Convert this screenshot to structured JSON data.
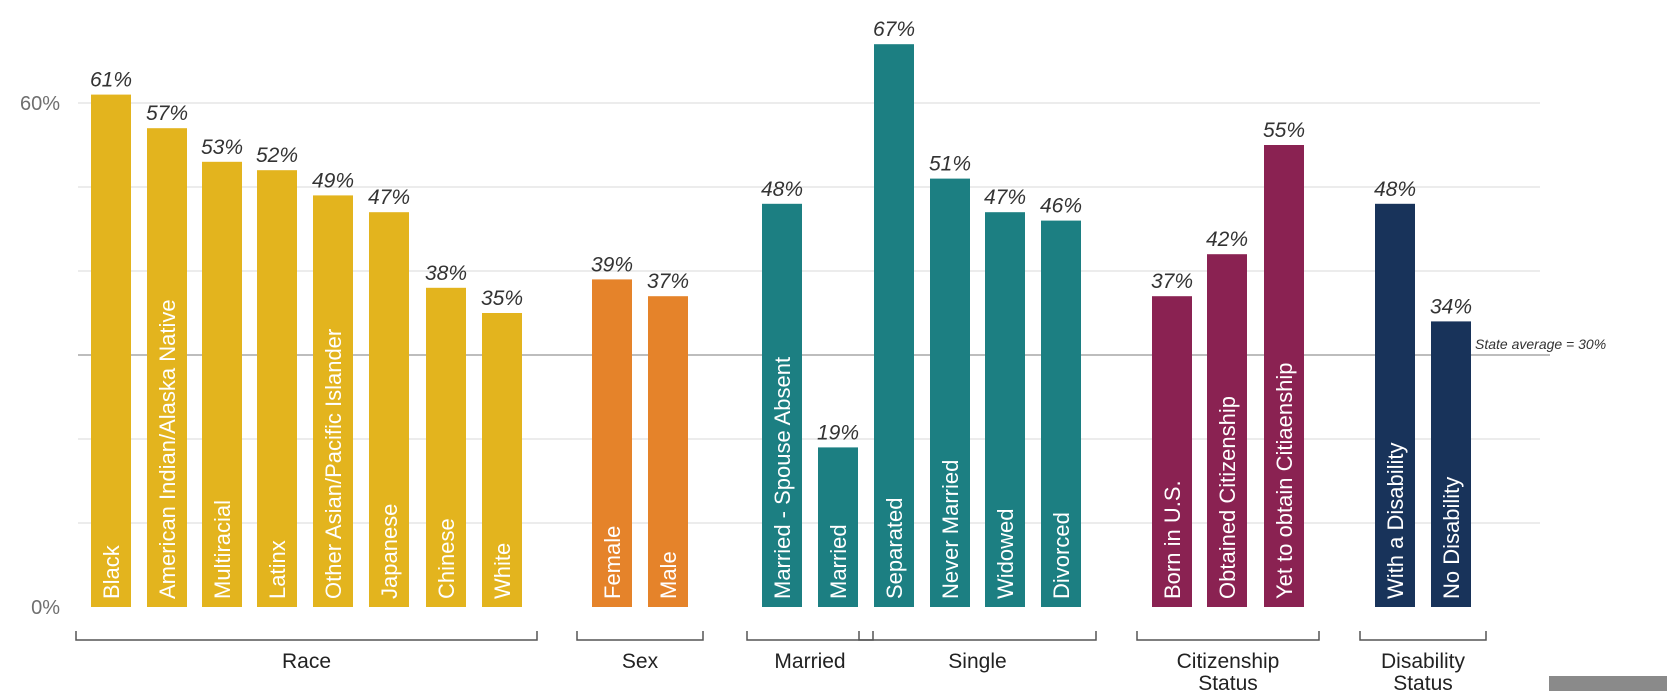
{
  "chart_data": {
    "type": "bar",
    "title": "",
    "xlabel": "",
    "ylabel": "",
    "ylim": [
      0,
      67
    ],
    "y_ticks": [
      {
        "value": 0,
        "label": "0%"
      },
      {
        "value": 60,
        "label": "60%"
      }
    ],
    "gridlines": [
      10,
      20,
      30,
      40,
      50,
      60
    ],
    "reference_line": {
      "value": 30,
      "label": "State average = 30%"
    },
    "colors": {
      "race": "#e3b41e",
      "sex": "#e5832a",
      "marital": "#1c7f82",
      "citizenship": "#8a2252",
      "disability": "#18335a"
    },
    "bars": [
      {
        "category": "Black",
        "value": 61,
        "label": "61%",
        "group": "race"
      },
      {
        "category": "American Indian/Alaska Native",
        "value": 57,
        "label": "57%",
        "group": "race"
      },
      {
        "category": "Multiracial",
        "value": 53,
        "label": "53%",
        "group": "race"
      },
      {
        "category": "Latinx",
        "value": 52,
        "label": "52%",
        "group": "race"
      },
      {
        "category": "Other Asian/Pacific Islander",
        "value": 49,
        "label": "49%",
        "group": "race"
      },
      {
        "category": "Japanese",
        "value": 47,
        "label": "47%",
        "group": "race"
      },
      {
        "category": "Chinese",
        "value": 38,
        "label": "38%",
        "group": "race"
      },
      {
        "category": "White",
        "value": 35,
        "label": "35%",
        "group": "race"
      },
      {
        "category": "Female",
        "value": 39,
        "label": "39%",
        "group": "sex"
      },
      {
        "category": "Male",
        "value": 37,
        "label": "37%",
        "group": "sex"
      },
      {
        "category": "Married - Spouse Absent",
        "value": 48,
        "label": "48%",
        "group": "marital"
      },
      {
        "category": "Married",
        "value": 19,
        "label": "19%",
        "group": "marital"
      },
      {
        "category": "Separated",
        "value": 67,
        "label": "67%",
        "group": "marital"
      },
      {
        "category": "Never Married",
        "value": 51,
        "label": "51%",
        "group": "marital"
      },
      {
        "category": "Widowed",
        "value": 47,
        "label": "47%",
        "group": "marital"
      },
      {
        "category": "Divorced",
        "value": 46,
        "label": "46%",
        "group": "marital"
      },
      {
        "category": "Born in U.S.",
        "value": 37,
        "label": "37%",
        "group": "citizenship"
      },
      {
        "category": "Obtained Citizenship",
        "value": 42,
        "label": "42%",
        "group": "citizenship"
      },
      {
        "category": "Yet to obtain Citiaenship",
        "value": 55,
        "label": "55%",
        "group": "citizenship"
      },
      {
        "category": "With a Disability",
        "value": 48,
        "label": "48%",
        "group": "disability"
      },
      {
        "category": "No Disability",
        "value": 34,
        "label": "34%",
        "group": "disability"
      }
    ],
    "category_groups": [
      {
        "label": [
          "Race"
        ],
        "first": 0,
        "last": 7
      },
      {
        "label": [
          "Sex"
        ],
        "first": 8,
        "last": 9
      },
      {
        "label": [
          "Married"
        ],
        "first": 10,
        "last": 11
      },
      {
        "label": [
          "Single"
        ],
        "first": 12,
        "last": 15
      },
      {
        "label": [
          "Citizenship",
          "Status"
        ],
        "first": 16,
        "last": 18
      },
      {
        "label": [
          "Disability",
          "Status"
        ],
        "first": 19,
        "last": 20
      }
    ]
  }
}
